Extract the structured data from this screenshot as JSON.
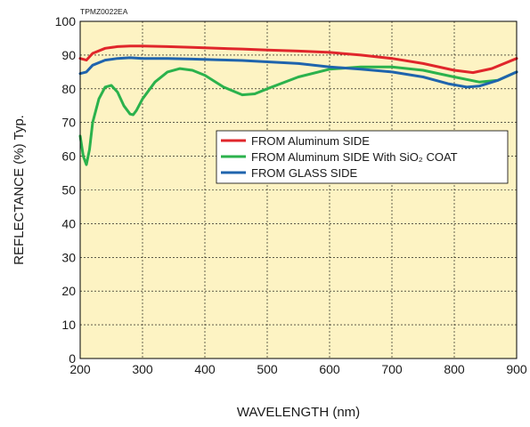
{
  "chart_data": {
    "type": "line",
    "code": "TPMZ0022EA",
    "xlabel": "WAVELENGTH (nm)",
    "ylabel": "REFLECTANCE (%) Typ.",
    "xlim": [
      200,
      900
    ],
    "ylim": [
      0,
      100
    ],
    "xticks": [
      "200",
      "300",
      "400",
      "500",
      "600",
      "700",
      "800",
      "900"
    ],
    "yticks": [
      "0",
      "10",
      "20",
      "30",
      "40",
      "50",
      "60",
      "70",
      "80",
      "90",
      "100"
    ],
    "grid": true,
    "legend_position": "middle-right",
    "plot_bg": "#fdf3c3",
    "series": [
      {
        "name": "FROM Aluminum SIDE",
        "color": "#e0262b",
        "x": [
          200,
          210,
          220,
          240,
          260,
          280,
          300,
          340,
          380,
          420,
          460,
          500,
          550,
          600,
          650,
          700,
          750,
          800,
          830,
          860,
          900
        ],
        "y": [
          89.0,
          88.5,
          90.5,
          92.0,
          92.5,
          92.7,
          92.7,
          92.5,
          92.3,
          92.0,
          91.8,
          91.5,
          91.2,
          90.8,
          90.0,
          89.0,
          87.5,
          85.5,
          84.8,
          86.0,
          89.0
        ]
      },
      {
        "name": "FROM Aluminum SIDE With SiO₂ COAT",
        "color": "#2bb24c",
        "x": [
          200,
          205,
          210,
          215,
          220,
          230,
          240,
          250,
          260,
          270,
          280,
          285,
          290,
          300,
          320,
          340,
          360,
          380,
          400,
          430,
          460,
          480,
          500,
          550,
          600,
          650,
          700,
          750,
          800,
          840,
          870,
          900
        ],
        "y": [
          66.0,
          60.0,
          57.5,
          62.0,
          70.0,
          77.0,
          80.5,
          81.0,
          79.0,
          75.0,
          72.5,
          72.3,
          73.5,
          77.0,
          82.0,
          85.0,
          86.0,
          85.5,
          84.0,
          80.5,
          78.2,
          78.5,
          80.0,
          83.5,
          85.8,
          86.5,
          86.5,
          85.5,
          83.5,
          82.0,
          82.5,
          85.0
        ]
      },
      {
        "name": "FROM GLASS SIDE",
        "color": "#1f64ad",
        "x": [
          200,
          210,
          220,
          240,
          260,
          280,
          300,
          340,
          380,
          420,
          460,
          500,
          550,
          600,
          650,
          700,
          750,
          790,
          820,
          840,
          870,
          900
        ],
        "y": [
          84.5,
          85.0,
          87.0,
          88.5,
          89.0,
          89.2,
          89.0,
          89.0,
          88.8,
          88.6,
          88.4,
          88.0,
          87.5,
          86.5,
          85.8,
          85.0,
          83.5,
          81.5,
          80.5,
          80.8,
          82.5,
          85.0
        ]
      }
    ]
  }
}
